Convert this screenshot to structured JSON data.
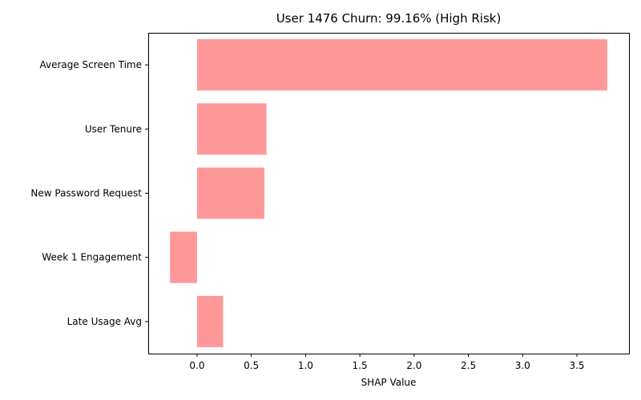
{
  "chart_data": {
    "type": "bar",
    "orientation": "horizontal",
    "title": "User 1476 Churn: 99.16% (High Risk)",
    "xlabel": "SHAP Value",
    "ylabel": "",
    "categories": [
      "Average Screen Time",
      "User Tenure",
      "New Password Request",
      "Week 1 Engagement",
      "Late Usage Avg"
    ],
    "values": [
      3.78,
      0.64,
      0.62,
      -0.25,
      0.24
    ],
    "xlim": [
      -0.45,
      3.98
    ],
    "xticks": [
      "0.0",
      "0.5",
      "1.0",
      "1.5",
      "2.0",
      "2.5",
      "3.0",
      "3.5"
    ],
    "bar_color": "#ff9999",
    "grid": false,
    "legend": "none"
  }
}
